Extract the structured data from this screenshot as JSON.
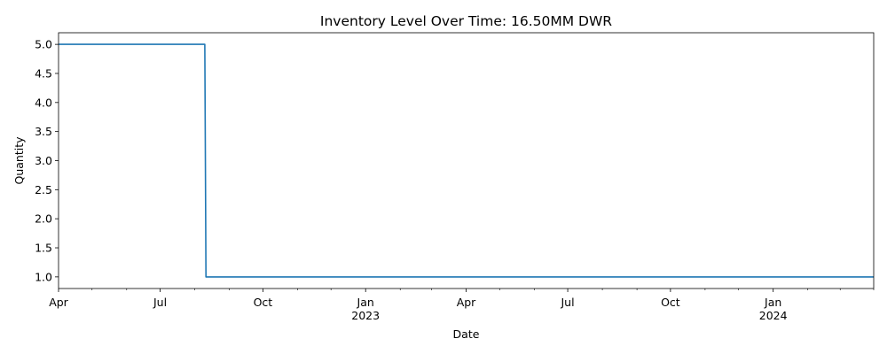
{
  "chart_data": {
    "type": "line",
    "title": "Inventory Level Over Time: 16.50MM DWR",
    "xlabel": "Date",
    "ylabel": "Quantity",
    "x_range": [
      "2022-04-01",
      "2024-03-31"
    ],
    "ylim": [
      0.8,
      5.2
    ],
    "y_ticks": [
      "1.0",
      "1.5",
      "2.0",
      "2.5",
      "3.0",
      "3.5",
      "4.0",
      "4.5",
      "5.0"
    ],
    "x_ticks": [
      {
        "date": "2022-04-01",
        "label": "Apr",
        "sublabel": ""
      },
      {
        "date": "2022-07-01",
        "label": "Jul",
        "sublabel": ""
      },
      {
        "date": "2022-10-01",
        "label": "Oct",
        "sublabel": ""
      },
      {
        "date": "2023-01-01",
        "label": "Jan",
        "sublabel": "2023"
      },
      {
        "date": "2023-04-01",
        "label": "Apr",
        "sublabel": ""
      },
      {
        "date": "2023-07-01",
        "label": "Jul",
        "sublabel": ""
      },
      {
        "date": "2023-10-01",
        "label": "Oct",
        "sublabel": ""
      },
      {
        "date": "2024-01-01",
        "label": "Jan",
        "sublabel": "2024"
      }
    ],
    "minor_tick_dates": [
      "2022-05-01",
      "2022-06-01",
      "2022-08-01",
      "2022-09-01",
      "2022-11-01",
      "2022-12-01",
      "2023-02-01",
      "2023-03-01",
      "2023-05-01",
      "2023-06-01",
      "2023-08-01",
      "2023-09-01",
      "2023-11-01",
      "2023-12-01",
      "2024-02-01",
      "2024-03-01",
      "2024-04-01"
    ],
    "series": [
      {
        "color": "#1f77b4",
        "points": [
          {
            "x": "2022-04-01",
            "y": 5
          },
          {
            "x": "2022-08-10",
            "y": 5
          },
          {
            "x": "2022-08-11",
            "y": 1
          },
          {
            "x": "2024-04-01",
            "y": 1
          }
        ]
      }
    ]
  }
}
